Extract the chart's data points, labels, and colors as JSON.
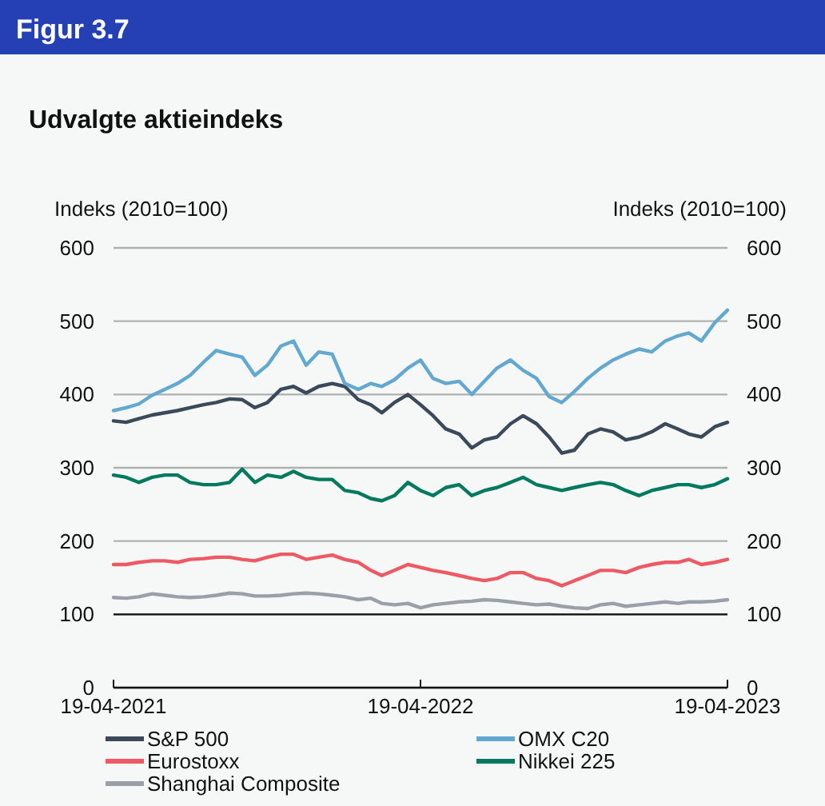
{
  "chart_data": {
    "type": "line",
    "title": "Udvalgte aktieindeks",
    "annotations": [
      "Figur 3.7"
    ],
    "ylabel": "Indeks (2010=100)",
    "y2label": "Indeks (2010=100)",
    "x": [
      "2021-04-19",
      "2021-05-04",
      "2021-05-19",
      "2021-06-04",
      "2021-06-19",
      "2021-07-04",
      "2021-07-19",
      "2021-08-04",
      "2021-08-19",
      "2021-09-04",
      "2021-09-19",
      "2021-10-04",
      "2021-10-19",
      "2021-11-04",
      "2021-11-19",
      "2021-12-04",
      "2021-12-19",
      "2022-01-04",
      "2022-01-19",
      "2022-02-04",
      "2022-02-19",
      "2022-03-04",
      "2022-03-19",
      "2022-04-04",
      "2022-04-19",
      "2022-05-04",
      "2022-05-19",
      "2022-06-04",
      "2022-06-19",
      "2022-07-04",
      "2022-07-19",
      "2022-08-04",
      "2022-08-19",
      "2022-09-04",
      "2022-09-19",
      "2022-10-04",
      "2022-10-19",
      "2022-11-04",
      "2022-11-19",
      "2022-12-04",
      "2022-12-19",
      "2023-01-04",
      "2023-01-19",
      "2023-02-04",
      "2023-02-19",
      "2023-03-04",
      "2023-03-19",
      "2023-04-04",
      "2023-04-19"
    ],
    "series": [
      {
        "name": "S&P 500",
        "color": "#3b4a5a",
        "values": [
          364,
          362,
          367,
          372,
          375,
          378,
          382,
          386,
          389,
          394,
          393,
          382,
          389,
          407,
          411,
          402,
          411,
          415,
          411,
          393,
          386,
          375,
          389,
          400,
          386,
          371,
          353,
          346,
          327,
          338,
          342,
          360,
          371,
          360,
          342,
          320,
          324,
          346,
          353,
          349,
          338,
          342,
          349,
          360,
          353,
          346,
          342,
          356,
          362
        ]
      },
      {
        "name": "OMX C20",
        "color": "#62a8d0",
        "values": [
          378,
          382,
          387,
          399,
          407,
          415,
          426,
          444,
          460,
          455,
          451,
          426,
          440,
          466,
          473,
          440,
          458,
          455,
          415,
          407,
          415,
          411,
          420,
          436,
          447,
          422,
          415,
          418,
          400,
          418,
          436,
          447,
          433,
          422,
          397,
          389,
          404,
          422,
          436,
          447,
          455,
          462,
          458,
          473,
          480,
          484,
          473,
          498,
          515
        ]
      },
      {
        "name": "Eurostoxx",
        "color": "#ee5a64",
        "values": [
          168,
          168,
          171,
          173,
          173,
          171,
          175,
          176,
          178,
          178,
          175,
          173,
          178,
          182,
          182,
          175,
          178,
          181,
          175,
          171,
          160,
          153,
          160,
          168,
          164,
          160,
          157,
          153,
          149,
          146,
          149,
          157,
          157,
          149,
          146,
          139,
          146,
          153,
          160,
          160,
          157,
          164,
          168,
          171,
          171,
          175,
          168,
          171,
          175
        ]
      },
      {
        "name": "Nikkei 225",
        "color": "#007a5e",
        "values": [
          290,
          287,
          280,
          287,
          290,
          290,
          280,
          277,
          277,
          280,
          298,
          280,
          290,
          287,
          295,
          287,
          284,
          284,
          269,
          266,
          258,
          255,
          262,
          280,
          269,
          262,
          273,
          277,
          262,
          269,
          273,
          280,
          287,
          277,
          273,
          269,
          273,
          277,
          280,
          277,
          269,
          262,
          269,
          273,
          277,
          277,
          273,
          277,
          285
        ]
      },
      {
        "name": "Shanghai Composite",
        "color": "#9aa0a8",
        "values": [
          123,
          122,
          124,
          128,
          126,
          124,
          123,
          124,
          126,
          129,
          128,
          125,
          125,
          126,
          128,
          129,
          128,
          126,
          124,
          120,
          122,
          115,
          113,
          115,
          109,
          113,
          115,
          117,
          118,
          120,
          119,
          117,
          115,
          113,
          114,
          111,
          109,
          108,
          113,
          115,
          111,
          113,
          115,
          117,
          115,
          117,
          117,
          118,
          120
        ]
      }
    ],
    "xlim": [
      "2021-04-19",
      "2023-04-19"
    ],
    "xticks": [
      {
        "value": "2021-04-19",
        "label": "19-04-2021"
      },
      {
        "value": "2022-04-19",
        "label": "19-04-2022"
      },
      {
        "value": "2023-04-19",
        "label": "19-04-2023"
      }
    ],
    "ylim": [
      0,
      600
    ],
    "yticks": [
      0,
      100,
      200,
      300,
      400,
      500,
      600
    ],
    "y2lim": [
      0,
      600
    ],
    "y2ticks": [
      0,
      100,
      200,
      300,
      400,
      500,
      600
    ],
    "ref_lines": [
      {
        "axis": "y",
        "value": 100,
        "color": "#111111"
      }
    ],
    "grid": "y",
    "legend": "bottom",
    "line_style": "solid",
    "marker": "none"
  }
}
